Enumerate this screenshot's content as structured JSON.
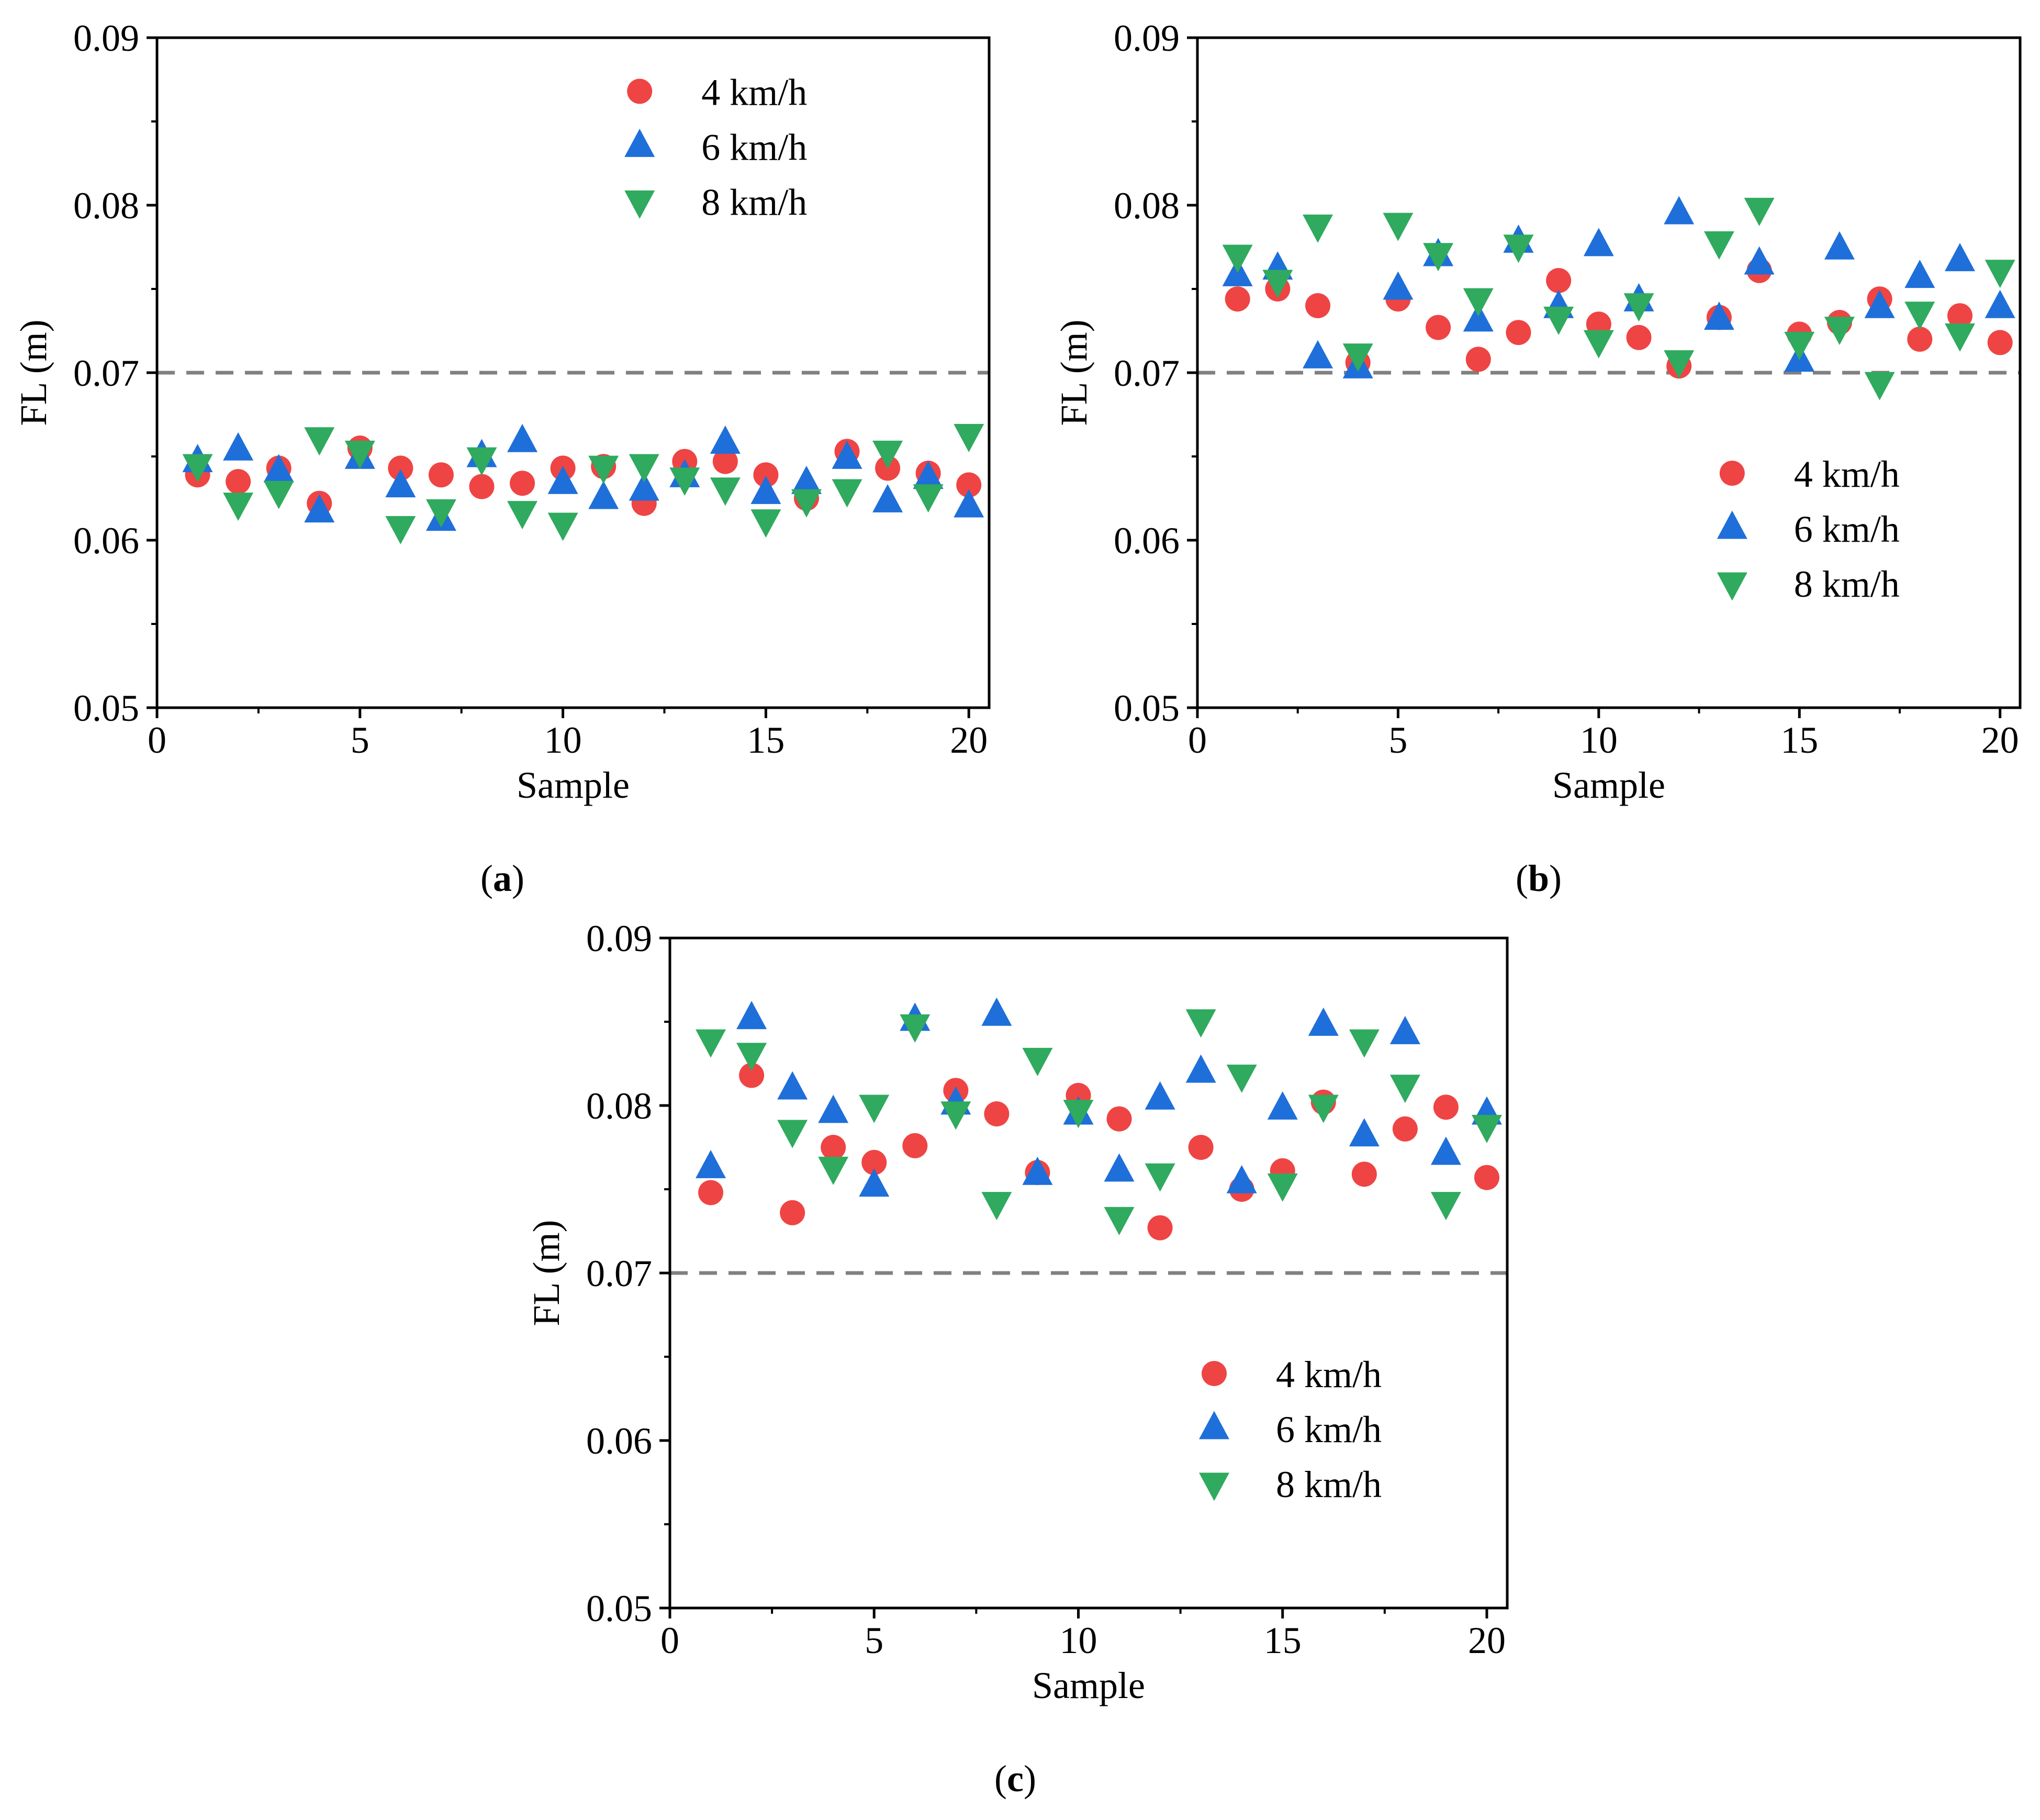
{
  "colors": {
    "4 km/h": "#ef4444",
    "6 km/h": "#1e6fd9",
    "8 km/h": "#2faa5e",
    "reference_line": "#808080",
    "axes": "#000000"
  },
  "markers": {
    "4 km/h": "circle",
    "6 km/h": "triangle-up",
    "8 km/h": "triangle-down"
  },
  "chart_data": [
    {
      "panel_label": "a",
      "type": "scatter",
      "xlabel": "Sample",
      "ylabel": "FL (m)",
      "xlim": [
        0,
        20.5
      ],
      "ylim": [
        0.05,
        0.09
      ],
      "xticks": [
        "0",
        "5",
        "10",
        "15",
        "20"
      ],
      "yticks": [
        "0.05",
        "0.06",
        "0.07",
        "0.08",
        "0.09"
      ],
      "reference_line": 0.07,
      "legend_position": "top-right",
      "x": [
        1,
        2,
        3,
        4,
        5,
        6,
        7,
        8,
        9,
        10,
        11,
        12,
        13,
        14,
        15,
        16,
        17,
        18,
        19,
        20
      ],
      "series": [
        {
          "name": "4 km/h",
          "values": [
            0.0639,
            0.0635,
            0.0643,
            0.0622,
            0.0655,
            0.0643,
            0.0639,
            0.0632,
            0.0634,
            0.0643,
            0.0644,
            0.0622,
            0.0647,
            0.0647,
            0.0639,
            0.0625,
            0.0653,
            0.0643,
            0.064,
            0.0633
          ]
        },
        {
          "name": "6 km/h",
          "values": [
            0.0647,
            0.0654,
            0.0641,
            0.0617,
            0.0649,
            0.0632,
            0.0612,
            0.065,
            0.0659,
            0.0634,
            0.0625,
            0.063,
            0.0638,
            0.0658,
            0.0628,
            0.0634,
            0.0649,
            0.0623,
            0.0637,
            0.062
          ]
        },
        {
          "name": "8 km/h",
          "values": [
            0.0645,
            0.0622,
            0.0629,
            0.0661,
            0.0653,
            0.0608,
            0.0618,
            0.0649,
            0.0617,
            0.061,
            0.0644,
            0.0645,
            0.0637,
            0.0631,
            0.0612,
            0.0624,
            0.063,
            0.0653,
            0.0627,
            0.0663
          ]
        }
      ]
    },
    {
      "panel_label": "b",
      "type": "scatter",
      "xlabel": "Sample",
      "ylabel": "FL (m)",
      "xlim": [
        0,
        20.5
      ],
      "ylim": [
        0.05,
        0.09
      ],
      "xticks": [
        "0",
        "5",
        "10",
        "15",
        "20"
      ],
      "yticks": [
        "0.05",
        "0.06",
        "0.07",
        "0.08",
        "0.09"
      ],
      "reference_line": 0.07,
      "legend_position": "center-right",
      "x": [
        1,
        2,
        3,
        4,
        5,
        6,
        7,
        8,
        9,
        10,
        11,
        12,
        13,
        14,
        15,
        16,
        17,
        18,
        19,
        20
      ],
      "series": [
        {
          "name": "4 km/h",
          "values": [
            0.0744,
            0.075,
            0.074,
            0.0706,
            0.0744,
            0.0727,
            0.0708,
            0.0724,
            0.0755,
            0.0729,
            0.0721,
            0.0704,
            0.0733,
            0.0761,
            0.0723,
            0.073,
            0.0744,
            0.072,
            0.0734,
            0.0718
          ]
        },
        {
          "name": "6 km/h",
          "values": [
            0.0758,
            0.0762,
            0.0709,
            0.0703,
            0.075,
            0.077,
            0.0731,
            0.0778,
            0.0739,
            0.0776,
            0.0743,
            0.0795,
            0.0732,
            0.0765,
            0.0707,
            0.0774,
            0.0739,
            0.0757,
            0.0767,
            0.0739
          ]
        },
        {
          "name": "8 km/h",
          "values": [
            0.077,
            0.0755,
            0.0788,
            0.0711,
            0.0789,
            0.0771,
            0.0744,
            0.0776,
            0.0733,
            0.0719,
            0.0741,
            0.0707,
            0.0778,
            0.0798,
            0.0718,
            0.0727,
            0.0694,
            0.0736,
            0.0723,
            0.0761
          ]
        }
      ]
    },
    {
      "panel_label": "c",
      "type": "scatter",
      "xlabel": "Sample",
      "ylabel": "FL (m)",
      "xlim": [
        0,
        20.5
      ],
      "ylim": [
        0.05,
        0.09
      ],
      "xticks": [
        "0",
        "5",
        "10",
        "15",
        "20"
      ],
      "yticks": [
        "0.05",
        "0.06",
        "0.07",
        "0.08",
        "0.09"
      ],
      "reference_line": 0.07,
      "legend_position": "center-right",
      "x": [
        1,
        2,
        3,
        4,
        5,
        6,
        7,
        8,
        9,
        10,
        11,
        12,
        13,
        14,
        15,
        16,
        17,
        18,
        19,
        20
      ],
      "series": [
        {
          "name": "4 km/h",
          "values": [
            0.0748,
            0.0818,
            0.0736,
            0.0775,
            0.0766,
            0.0776,
            0.0809,
            0.0795,
            0.076,
            0.0806,
            0.0792,
            0.0727,
            0.0775,
            0.075,
            0.0761,
            0.0802,
            0.0759,
            0.0786,
            0.0799,
            0.0757
          ]
        },
        {
          "name": "6 km/h",
          "values": [
            0.0763,
            0.0852,
            0.081,
            0.0796,
            0.0752,
            0.0851,
            0.0801,
            0.0854,
            0.0759,
            0.0795,
            0.0761,
            0.0804,
            0.082,
            0.0754,
            0.0798,
            0.0848,
            0.0782,
            0.0843,
            0.0771,
            0.0795
          ]
        },
        {
          "name": "8 km/h",
          "values": [
            0.0839,
            0.0831,
            0.0785,
            0.0763,
            0.08,
            0.0848,
            0.0796,
            0.0742,
            0.0828,
            0.0797,
            0.0733,
            0.0759,
            0.0851,
            0.0818,
            0.0753,
            0.08,
            0.0839,
            0.0812,
            0.0742,
            0.0788
          ]
        }
      ]
    }
  ]
}
